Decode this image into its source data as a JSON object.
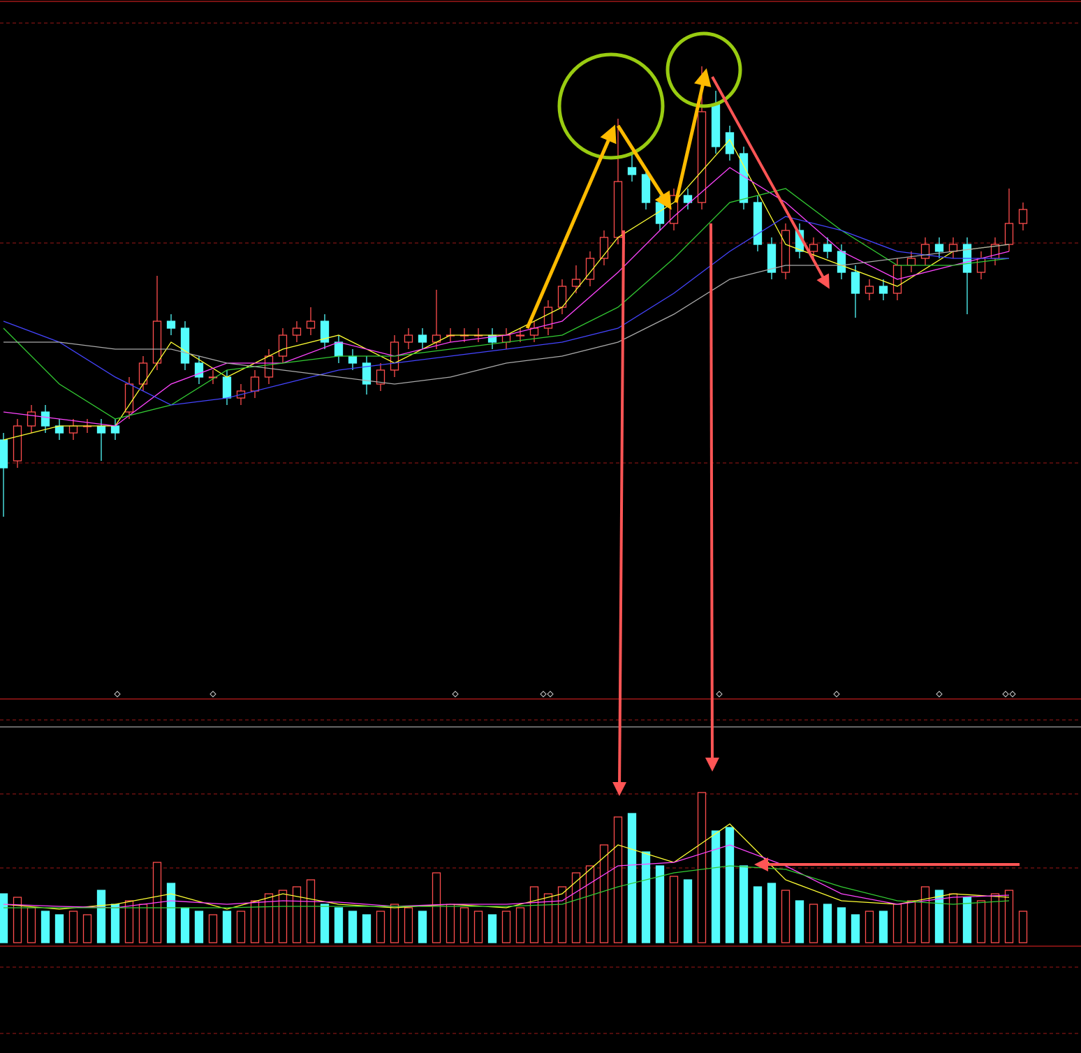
{
  "chart_data": {
    "type": "candlestick",
    "ylim": [
      0,
      99
    ],
    "open": [
      36,
      33,
      38,
      40,
      38,
      37,
      38,
      38,
      38,
      40,
      44,
      47,
      53,
      52,
      47,
      45,
      45,
      42,
      43,
      45,
      48,
      51,
      52,
      53,
      50,
      48,
      47,
      44,
      46,
      50,
      51,
      50,
      51,
      51,
      51,
      51,
      50,
      51,
      51,
      52,
      55,
      58,
      59,
      62,
      65,
      75,
      74,
      70,
      67,
      71,
      70,
      84,
      80,
      77,
      70,
      64,
      60,
      66,
      63,
      64,
      63,
      60,
      57,
      58,
      57,
      61,
      62,
      64,
      63,
      64,
      60,
      62,
      64,
      67
    ],
    "high": [
      37,
      39,
      41,
      41,
      39,
      39,
      39,
      39,
      39,
      45,
      48,
      59.5,
      54,
      53,
      48,
      46,
      46,
      44,
      46,
      49,
      52,
      53,
      55,
      54,
      51,
      49,
      48,
      47,
      51,
      52,
      52,
      57.5,
      52,
      52,
      52,
      52,
      52,
      52,
      53,
      56,
      59,
      61,
      63,
      66,
      82,
      77,
      75,
      71,
      72,
      72,
      89.5,
      86,
      81,
      78,
      71,
      65,
      67,
      67,
      65,
      65,
      64,
      61,
      59,
      59,
      62,
      63,
      65,
      65,
      65,
      65,
      63,
      65,
      72,
      70
    ],
    "low": [
      25,
      32,
      37,
      37,
      36,
      36,
      37,
      33,
      36,
      39,
      43,
      46,
      51,
      46,
      44,
      44,
      41,
      41,
      42,
      44,
      47,
      50,
      51,
      49,
      47,
      46,
      42.5,
      43,
      45,
      49,
      49,
      49,
      50,
      50,
      50,
      49,
      49,
      50,
      50,
      51,
      54,
      57,
      58,
      61,
      64,
      73,
      69,
      66,
      66,
      69,
      69,
      77,
      76,
      69,
      63,
      59,
      59,
      62,
      62,
      62,
      59,
      53.5,
      56,
      56,
      56,
      60,
      61,
      62,
      62,
      54,
      59,
      61,
      63,
      66
    ],
    "close": [
      32,
      38,
      40,
      38,
      37,
      38,
      38,
      37,
      37,
      44,
      47,
      53,
      52,
      47,
      45,
      45,
      42,
      43,
      45,
      48,
      51,
      52,
      53,
      50,
      48,
      47,
      44,
      46,
      50,
      51,
      50,
      51,
      51,
      51,
      51,
      50,
      51,
      51,
      52,
      55,
      58,
      59,
      62,
      65,
      73,
      74,
      70,
      67,
      71,
      70,
      83,
      78,
      77,
      70,
      64,
      60,
      66,
      63,
      64,
      63,
      60,
      57,
      58,
      57,
      61,
      62,
      64,
      63,
      64,
      60,
      62,
      64,
      67,
      69
    ],
    "volume": [
      70,
      65,
      50,
      45,
      40,
      45,
      40,
      75,
      55,
      60,
      55,
      115,
      85,
      50,
      45,
      40,
      45,
      45,
      60,
      70,
      75,
      80,
      90,
      55,
      50,
      45,
      40,
      45,
      55,
      50,
      45,
      100,
      55,
      50,
      45,
      40,
      45,
      50,
      80,
      70,
      80,
      100,
      110,
      140,
      180,
      185,
      130,
      110,
      95,
      90,
      215,
      160,
      165,
      110,
      80,
      85,
      75,
      60,
      55,
      55,
      50,
      40,
      45,
      45,
      55,
      60,
      80,
      75,
      70,
      65,
      60,
      70,
      75,
      45
    ],
    "vlim": [
      0,
      220
    ],
    "up_color": "#ff4d4d",
    "down_color": "#54fcfc",
    "ma_x": [
      0,
      4,
      8,
      12,
      16,
      20,
      24,
      28,
      32,
      36,
      40,
      44,
      48,
      52,
      56,
      60,
      64,
      68,
      72
    ],
    "ma_series": [
      {
        "color": "#ffff33",
        "values": [
          36,
          38,
          38,
          50,
          45,
          49,
          51,
          47,
          51,
          51,
          55,
          65,
          70,
          79,
          64,
          61,
          58,
          63,
          64
        ]
      },
      {
        "color": "#ff44ff",
        "values": [
          40,
          39,
          38,
          44,
          47,
          47,
          50,
          48,
          50,
          51,
          53,
          60,
          68,
          75,
          70,
          63,
          59,
          61,
          63
        ]
      },
      {
        "color": "#33cc33",
        "values": [
          52,
          44,
          39,
          41,
          46,
          47,
          48,
          48,
          49,
          50,
          51,
          55,
          62,
          70,
          72,
          66,
          61,
          61,
          62
        ]
      },
      {
        "color": "#4444ff",
        "values": [
          53,
          50,
          45,
          41,
          42,
          44,
          46,
          47,
          48,
          49,
          50,
          52,
          57,
          63,
          68,
          66,
          63,
          62,
          62
        ]
      },
      {
        "color": "#aaaaaa",
        "values": [
          50,
          50,
          49,
          49,
          47,
          46,
          45,
          44,
          45,
          47,
          48,
          50,
          54,
          59,
          61,
          61,
          62,
          63,
          64
        ]
      }
    ],
    "vol_ma_series": [
      {
        "color": "#ffff33",
        "values": [
          55,
          48,
          55,
          70,
          48,
          70,
          55,
          50,
          55,
          50,
          70,
          140,
          115,
          170,
          90,
          60,
          55,
          70,
          65
        ]
      },
      {
        "color": "#ff44ff",
        "values": [
          55,
          52,
          50,
          60,
          55,
          60,
          58,
          52,
          55,
          55,
          60,
          110,
          115,
          140,
          110,
          70,
          55,
          65,
          68
        ]
      },
      {
        "color": "#33cc33",
        "values": [
          50,
          50,
          50,
          50,
          50,
          52,
          52,
          52,
          52,
          52,
          55,
          80,
          100,
          110,
          105,
          80,
          60,
          55,
          60
        ]
      }
    ]
  }
}
